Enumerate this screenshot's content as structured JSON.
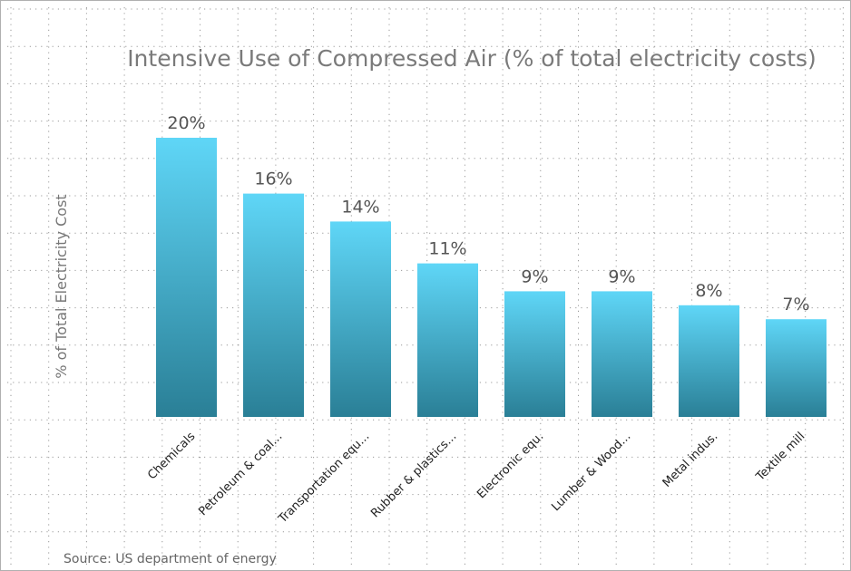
{
  "chart_data": {
    "type": "bar",
    "title": "Intensive Use of Compressed Air  (% of total electricity costs)",
    "ylabel": "% of Total Electricity Cost",
    "xlabel": "",
    "categories": [
      "Chemicals",
      "Petroleum & coal...",
      "Transportation equ...",
      "Rubber & plastics...",
      "Electronic equ.",
      "Lumber & Wood...",
      "Metal indus.",
      "Textile mill"
    ],
    "values": [
      20,
      16,
      14,
      11,
      9,
      9,
      8,
      7
    ],
    "data_labels": [
      "20%",
      "16%",
      "14%",
      "11%",
      "9%",
      "9%",
      "8%",
      "7%"
    ],
    "ylim": [
      0,
      20
    ],
    "grid": true,
    "legend": "none",
    "source": "Source: US department of energy",
    "colors": {
      "bar_top": "#5fd6f7",
      "bar_bottom": "#2a7f96",
      "grid": "#9a9a9a",
      "frame": "#b0b0b0"
    }
  }
}
